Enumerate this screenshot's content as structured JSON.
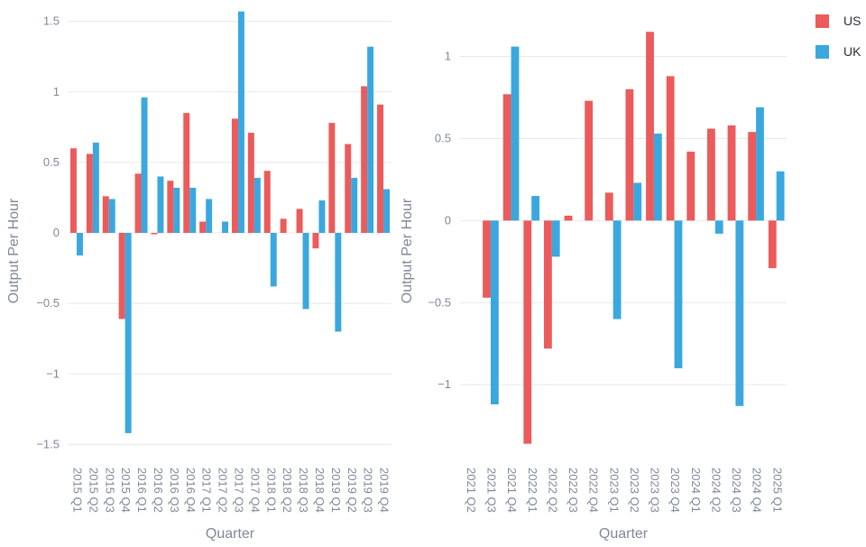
{
  "colors": {
    "US": "#eb5b5b",
    "UK": "#3aa8df",
    "grid": "#e6e8ec",
    "text": "#7f8799"
  },
  "legend": {
    "items": [
      {
        "label": "US",
        "color": "#eb5b5b"
      },
      {
        "label": "UK",
        "color": "#3aa8df"
      }
    ]
  },
  "chart_data": [
    {
      "type": "bar",
      "xlabel": "Quarter",
      "ylabel": "Output Per Hour",
      "ylim": [
        -1.6,
        1.6
      ],
      "yticks": [
        -1.5,
        -1,
        -0.5,
        0,
        0.5,
        1,
        1.5
      ],
      "ytick_labels": [
        "−1.5",
        "−1",
        "−0.5",
        "0",
        "0.5",
        "1",
        "1.5"
      ],
      "grid": true,
      "categories": [
        "2015 Q1",
        "2015 Q2",
        "2015 Q3",
        "2015 Q4",
        "2016 Q1",
        "2016 Q2",
        "2016 Q3",
        "2016 Q4",
        "2017 Q1",
        "2017 Q2",
        "2017 Q3",
        "2017 Q4",
        "2018 Q1",
        "2018 Q2",
        "2018 Q3",
        "2018 Q4",
        "2019 Q1",
        "2019 Q2",
        "2019 Q3",
        "2019 Q4"
      ],
      "series": [
        {
          "name": "US",
          "values": [
            0.6,
            0.56,
            0.26,
            -0.61,
            0.42,
            -0.01,
            0.37,
            0.85,
            0.08,
            null,
            0.81,
            0.71,
            0.44,
            0.1,
            0.17,
            -0.11,
            0.78,
            0.63,
            1.04,
            0.91
          ]
        },
        {
          "name": "UK",
          "values": [
            -0.16,
            0.64,
            0.24,
            -1.42,
            0.96,
            0.4,
            0.32,
            0.32,
            0.24,
            0.08,
            1.57,
            0.39,
            -0.38,
            null,
            -0.54,
            0.23,
            -0.7,
            0.39,
            1.32,
            0.31
          ]
        }
      ]
    },
    {
      "type": "bar",
      "xlabel": "Quarter",
      "ylabel": "Output Per Hour",
      "ylim": [
        -1.45,
        1.3
      ],
      "yticks": [
        -1,
        -0.5,
        0,
        0.5,
        1
      ],
      "ytick_labels": [
        "−1",
        "−0.5",
        "0",
        "0.5",
        "1"
      ],
      "grid": true,
      "categories": [
        "2021 Q2",
        "2021 Q3",
        "2021 Q4",
        "2022 Q1",
        "2022 Q2",
        "2022 Q3",
        "2022 Q4",
        "2023 Q1",
        "2023 Q2",
        "2023 Q3",
        "2023 Q4",
        "2024 Q1",
        "2024 Q2",
        "2024 Q3",
        "2024 Q4",
        "2025 Q1"
      ],
      "series": [
        {
          "name": "US",
          "values": [
            null,
            -0.47,
            0.77,
            -1.36,
            -0.78,
            0.03,
            0.73,
            0.17,
            0.8,
            1.15,
            0.88,
            0.42,
            0.56,
            0.58,
            0.54,
            -0.29
          ]
        },
        {
          "name": "UK",
          "values": [
            null,
            -1.12,
            1.06,
            0.15,
            -0.22,
            null,
            null,
            -0.6,
            0.23,
            0.53,
            -0.9,
            null,
            -0.08,
            -1.13,
            0.69,
            0.3
          ]
        }
      ]
    }
  ]
}
